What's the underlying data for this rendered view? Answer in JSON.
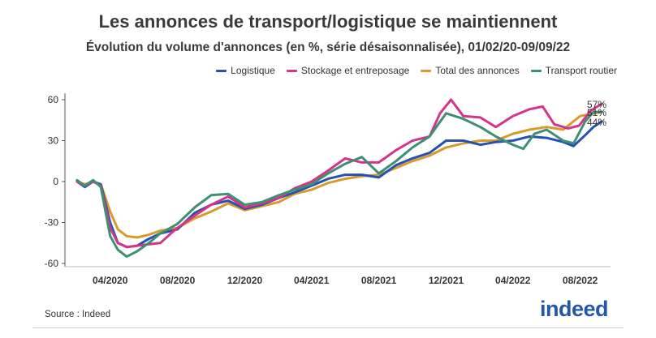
{
  "title": "Les annonces de transport/logistique se maintiennent",
  "subtitle": "Évolution du volume d'annonces (en %, série désaisonnalisée), 01/02/20-09/09/22",
  "source": "Source : Indeed",
  "brand": "indeed",
  "colors": {
    "logistique": "#2451b3",
    "stockage": "#d6338a",
    "total": "#d89a2b",
    "transport": "#3e8f73"
  },
  "chart_data": {
    "type": "line",
    "title": "Les annonces de transport/logistique se maintiennent",
    "subtitle": "Évolution du volume d'annonces (en %, série désaisonnalisée), 01/02/20-09/09/22",
    "ylim": [
      -60,
      60
    ],
    "y_ticks": [
      60,
      30,
      0,
      -30,
      -60
    ],
    "x_range": [
      "2020-02-01",
      "2022-09-09"
    ],
    "x_tick_labels": [
      "04/2020",
      "08/2020",
      "12/2020",
      "04/2021",
      "08/2021",
      "12/2021",
      "04/2022",
      "08/2022"
    ],
    "x_tick_dates": [
      "2020-04-01",
      "2020-08-01",
      "2020-12-01",
      "2021-04-01",
      "2021-08-01",
      "2021-12-01",
      "2022-04-01",
      "2022-08-01"
    ],
    "grid": false,
    "legend_position": "top-right",
    "end_labels": [
      "57%",
      "51%",
      "44%"
    ],
    "series": [
      {
        "name": "Logistique",
        "color": "#2451b3",
        "points": [
          [
            "2020-02-01",
            0
          ],
          [
            "2020-02-15",
            -4
          ],
          [
            "2020-03-01",
            0
          ],
          [
            "2020-03-15",
            -2
          ],
          [
            "2020-04-01",
            -30
          ],
          [
            "2020-04-15",
            -45
          ],
          [
            "2020-05-01",
            -48
          ],
          [
            "2020-05-20",
            -47
          ],
          [
            "2020-06-10",
            -42
          ],
          [
            "2020-07-01",
            -38
          ],
          [
            "2020-08-01",
            -35
          ],
          [
            "2020-09-01",
            -23
          ],
          [
            "2020-10-01",
            -17
          ],
          [
            "2020-11-01",
            -14
          ],
          [
            "2020-12-01",
            -20
          ],
          [
            "2021-01-01",
            -17
          ],
          [
            "2021-02-01",
            -12
          ],
          [
            "2021-03-01",
            -8
          ],
          [
            "2021-04-01",
            -3
          ],
          [
            "2021-05-01",
            2
          ],
          [
            "2021-06-01",
            5
          ],
          [
            "2021-07-01",
            5
          ],
          [
            "2021-08-01",
            3
          ],
          [
            "2021-09-01",
            12
          ],
          [
            "2021-10-01",
            17
          ],
          [
            "2021-11-01",
            21
          ],
          [
            "2021-12-01",
            30
          ],
          [
            "2022-01-01",
            30
          ],
          [
            "2022-02-01",
            27
          ],
          [
            "2022-03-01",
            29
          ],
          [
            "2022-04-01",
            30
          ],
          [
            "2022-05-01",
            33
          ],
          [
            "2022-06-01",
            32
          ],
          [
            "2022-07-01",
            29
          ],
          [
            "2022-07-20",
            26
          ],
          [
            "2022-08-10",
            34
          ],
          [
            "2022-08-25",
            40
          ],
          [
            "2022-09-09",
            44
          ]
        ]
      },
      {
        "name": "Stockage et entreposage",
        "color": "#d6338a",
        "points": [
          [
            "2020-02-01",
            0
          ],
          [
            "2020-02-15",
            -3
          ],
          [
            "2020-03-01",
            0
          ],
          [
            "2020-03-15",
            -3
          ],
          [
            "2020-04-01",
            -34
          ],
          [
            "2020-04-15",
            -45
          ],
          [
            "2020-05-01",
            -48
          ],
          [
            "2020-05-20",
            -47
          ],
          [
            "2020-06-10",
            -46
          ],
          [
            "2020-07-01",
            -45
          ],
          [
            "2020-07-20",
            -38
          ],
          [
            "2020-08-01",
            -34
          ],
          [
            "2020-09-01",
            -25
          ],
          [
            "2020-10-01",
            -17
          ],
          [
            "2020-11-01",
            -11
          ],
          [
            "2020-12-01",
            -19
          ],
          [
            "2021-01-01",
            -16
          ],
          [
            "2021-02-01",
            -12
          ],
          [
            "2021-03-01",
            -5
          ],
          [
            "2021-04-01",
            0
          ],
          [
            "2021-05-01",
            8
          ],
          [
            "2021-06-01",
            17
          ],
          [
            "2021-07-01",
            14
          ],
          [
            "2021-08-01",
            14
          ],
          [
            "2021-09-01",
            23
          ],
          [
            "2021-10-01",
            30
          ],
          [
            "2021-11-01",
            33
          ],
          [
            "2021-11-20",
            50
          ],
          [
            "2021-12-10",
            60
          ],
          [
            "2022-01-01",
            48
          ],
          [
            "2022-02-01",
            47
          ],
          [
            "2022-03-01",
            40
          ],
          [
            "2022-04-01",
            48
          ],
          [
            "2022-05-01",
            53
          ],
          [
            "2022-05-25",
            55
          ],
          [
            "2022-06-15",
            42
          ],
          [
            "2022-07-10",
            39
          ],
          [
            "2022-07-30",
            41
          ],
          [
            "2022-08-20",
            52
          ],
          [
            "2022-09-09",
            57
          ]
        ]
      },
      {
        "name": "Total des annonces",
        "color": "#d89a2b",
        "points": [
          [
            "2020-02-01",
            0
          ],
          [
            "2020-02-15",
            -2
          ],
          [
            "2020-03-01",
            0
          ],
          [
            "2020-03-15",
            -2
          ],
          [
            "2020-04-01",
            -22
          ],
          [
            "2020-04-15",
            -35
          ],
          [
            "2020-05-01",
            -40
          ],
          [
            "2020-05-20",
            -41
          ],
          [
            "2020-06-10",
            -39
          ],
          [
            "2020-07-01",
            -36
          ],
          [
            "2020-08-01",
            -34
          ],
          [
            "2020-09-01",
            -27
          ],
          [
            "2020-10-01",
            -22
          ],
          [
            "2020-11-01",
            -16
          ],
          [
            "2020-12-01",
            -21
          ],
          [
            "2021-01-01",
            -18
          ],
          [
            "2021-02-01",
            -15
          ],
          [
            "2021-03-01",
            -9
          ],
          [
            "2021-04-01",
            -6
          ],
          [
            "2021-05-01",
            -1
          ],
          [
            "2021-06-01",
            2
          ],
          [
            "2021-07-01",
            4
          ],
          [
            "2021-08-01",
            5
          ],
          [
            "2021-09-01",
            10
          ],
          [
            "2021-10-01",
            15
          ],
          [
            "2021-11-01",
            19
          ],
          [
            "2021-12-01",
            25
          ],
          [
            "2022-01-01",
            28
          ],
          [
            "2022-02-01",
            30
          ],
          [
            "2022-03-01",
            30
          ],
          [
            "2022-04-01",
            35
          ],
          [
            "2022-05-01",
            38
          ],
          [
            "2022-06-01",
            40
          ],
          [
            "2022-07-01",
            38
          ],
          [
            "2022-08-01",
            48
          ],
          [
            "2022-09-09",
            51
          ]
        ]
      },
      {
        "name": "Transport routier",
        "color": "#3e8f73",
        "points": [
          [
            "2020-02-01",
            1
          ],
          [
            "2020-02-15",
            -3
          ],
          [
            "2020-03-01",
            1
          ],
          [
            "2020-03-15",
            -4
          ],
          [
            "2020-04-01",
            -40
          ],
          [
            "2020-04-15",
            -50
          ],
          [
            "2020-05-01",
            -55
          ],
          [
            "2020-05-20",
            -51
          ],
          [
            "2020-06-10",
            -45
          ],
          [
            "2020-07-01",
            -38
          ],
          [
            "2020-08-01",
            -31
          ],
          [
            "2020-09-01",
            -19
          ],
          [
            "2020-10-01",
            -10
          ],
          [
            "2020-11-01",
            -9
          ],
          [
            "2020-12-01",
            -17
          ],
          [
            "2021-01-01",
            -15
          ],
          [
            "2021-02-01",
            -10
          ],
          [
            "2021-03-01",
            -6
          ],
          [
            "2021-04-01",
            -2
          ],
          [
            "2021-05-01",
            6
          ],
          [
            "2021-06-01",
            13
          ],
          [
            "2021-07-01",
            18
          ],
          [
            "2021-08-01",
            6
          ],
          [
            "2021-09-01",
            15
          ],
          [
            "2021-10-01",
            25
          ],
          [
            "2021-11-01",
            33
          ],
          [
            "2021-12-01",
            50
          ],
          [
            "2022-01-01",
            46
          ],
          [
            "2022-02-01",
            40
          ],
          [
            "2022-03-01",
            33
          ],
          [
            "2022-04-01",
            27
          ],
          [
            "2022-04-20",
            24
          ],
          [
            "2022-05-10",
            35
          ],
          [
            "2022-06-01",
            38
          ],
          [
            "2022-07-01",
            30
          ],
          [
            "2022-07-20",
            28
          ],
          [
            "2022-08-10",
            44
          ],
          [
            "2022-08-25",
            51
          ],
          [
            "2022-09-09",
            51
          ]
        ]
      }
    ]
  }
}
